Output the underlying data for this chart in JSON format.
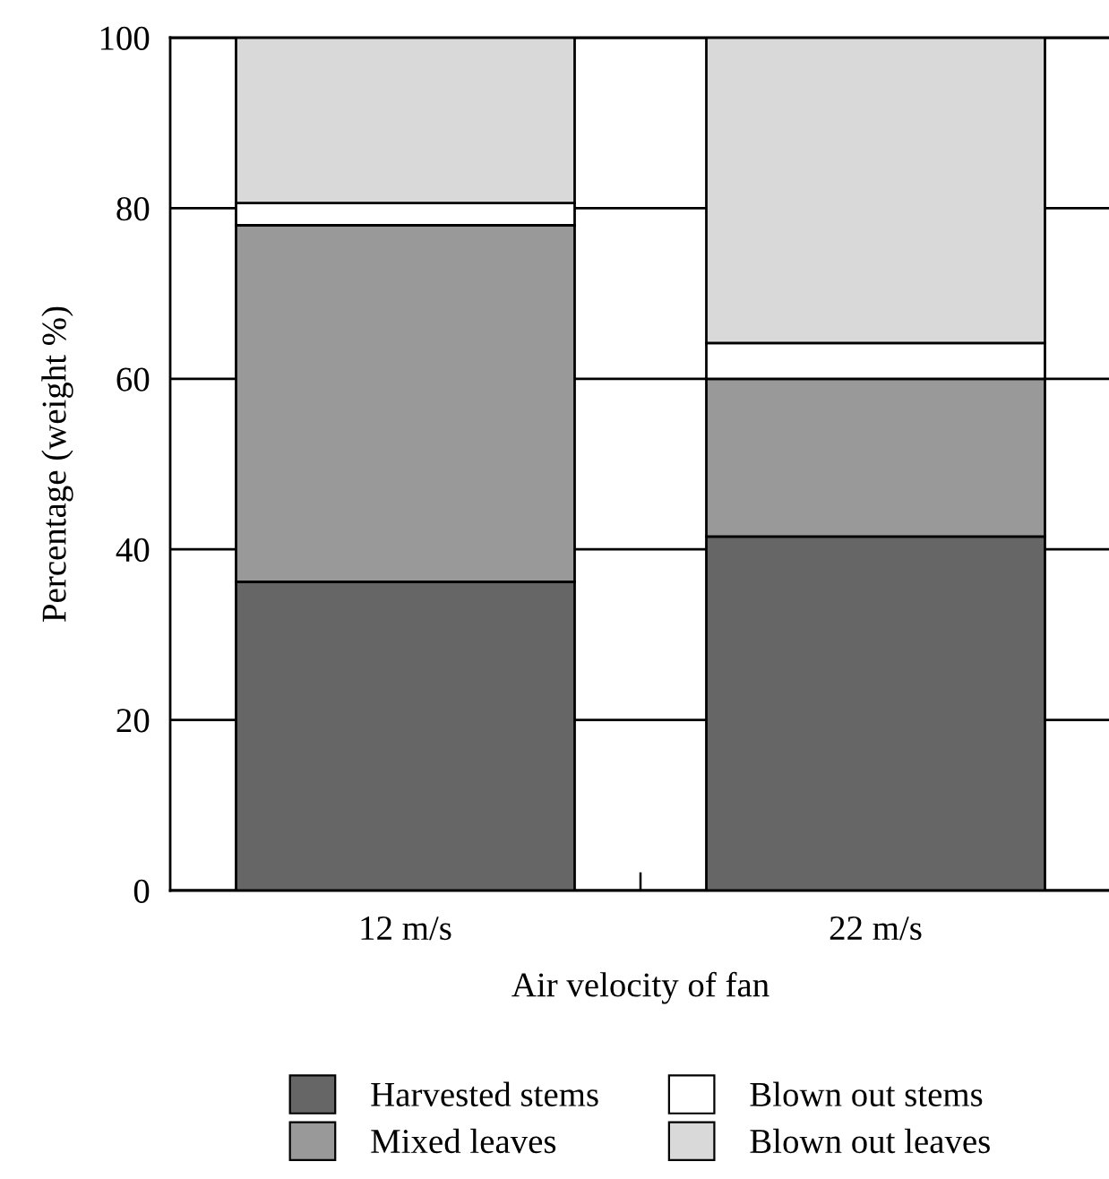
{
  "chart_data": {
    "type": "bar",
    "stacked": true,
    "xlabel": "Air velocity of fan",
    "ylabel": "Percentage (weight %)",
    "categories": [
      "12 m/s",
      "22 m/s"
    ],
    "series": [
      {
        "name": "Harvested stems",
        "color": "#666666",
        "values": [
          36.2,
          41.5
        ]
      },
      {
        "name": "Mixed leaves",
        "color": "#999999",
        "values": [
          41.8,
          18.5
        ]
      },
      {
        "name": "Blown out stems",
        "color": "#ffffff",
        "values": [
          2.6,
          4.2
        ]
      },
      {
        "name": "Blown out leaves",
        "color": "#d9d9d9",
        "values": [
          19.4,
          35.8
        ]
      }
    ],
    "ylim": [
      0,
      100
    ],
    "yticks": [
      0,
      20,
      40,
      60,
      80,
      100
    ],
    "grid": "y",
    "legend": "bottom"
  }
}
